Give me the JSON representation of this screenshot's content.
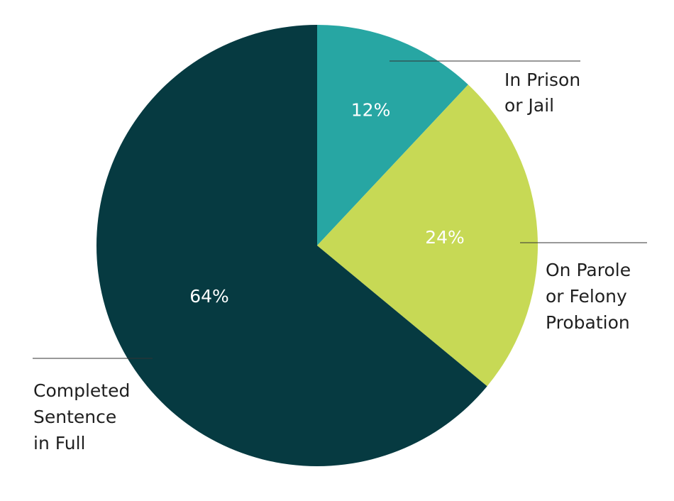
{
  "chart_data": {
    "type": "pie",
    "title": "",
    "slices": [
      {
        "label": "In Prison or Jail",
        "label_lines": [
          "In Prison",
          "or Jail"
        ],
        "value": 12,
        "value_label": "12%",
        "color": "#27a6a3"
      },
      {
        "label": "On Parole or Felony Probation",
        "label_lines": [
          "On Parole",
          "or Felony",
          "Probation"
        ],
        "value": 24,
        "value_label": "24%",
        "color": "#c7d955"
      },
      {
        "label": "Completed Sentence in Full",
        "label_lines": [
          "Completed",
          "Sentence",
          "in Full"
        ],
        "value": 64,
        "value_label": "64%",
        "color": "#063a41"
      }
    ],
    "start": "12 o'clock",
    "direction": "clockwise",
    "legend": "none",
    "label_style": "outside labels with leader lines"
  }
}
